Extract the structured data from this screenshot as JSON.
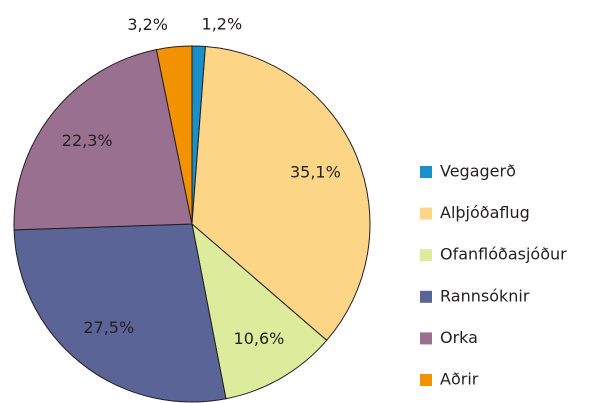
{
  "chart_data": {
    "type": "pie",
    "categories": [
      "Vegagerð",
      "Alþjóðaflug",
      "Ofanflóðasjóður",
      "Rannsóknir",
      "Orka",
      "Aðrir"
    ],
    "values": [
      1.2,
      35.1,
      10.6,
      27.5,
      22.3,
      3.2
    ],
    "value_labels": [
      "1,2%",
      "35,1%",
      "10,6%",
      "27,5%",
      "22,3%",
      "3,2%"
    ],
    "colors": [
      "#1a8fc9",
      "#fdd587",
      "#dcec9c",
      "#5a6496",
      "#9a7090",
      "#f39200"
    ],
    "legend": "right"
  }
}
